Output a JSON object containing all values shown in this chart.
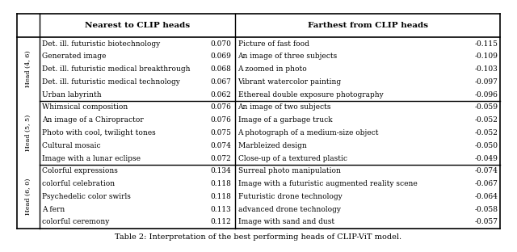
{
  "title": "Table 2: Interpretation of the best performing heads of CLIP-ViT model.",
  "col_header_left": "Nearest to CLIP heads",
  "col_header_right": "Farthest from CLIP heads",
  "sections": [
    {
      "head_label": "Head (4, 6)",
      "nearest": [
        [
          "Det. ill. futuristic biotechnology",
          "0.070"
        ],
        [
          "Generated image",
          "0.069"
        ],
        [
          "Det. ill. futuristic medical breakthrough",
          "0.068"
        ],
        [
          "Det. ill. futuristic medical technology",
          "0.067"
        ],
        [
          "Urban labyrinth",
          "0.062"
        ]
      ],
      "farthest": [
        [
          "Picture of fast food",
          "-0.115"
        ],
        [
          "An image of three subjects",
          "-0.109"
        ],
        [
          "A zoomed in photo",
          "-0.103"
        ],
        [
          "Vibrant watercolor painting",
          "-0.097"
        ],
        [
          "Ethereal double exposure photography",
          "-0.096"
        ]
      ]
    },
    {
      "head_label": "Head (5, 5)",
      "nearest": [
        [
          "Whimsical composition",
          "0.076"
        ],
        [
          "An image of a Chiropractor",
          "0.076"
        ],
        [
          "Photo with cool, twilight tones",
          "0.075"
        ],
        [
          "Cultural mosaic",
          "0.074"
        ],
        [
          "Image with a lunar eclipse",
          "0.072"
        ]
      ],
      "farthest": [
        [
          "An image of two subjects",
          "-0.059"
        ],
        [
          "Image of a garbage truck",
          "-0.052"
        ],
        [
          "A photograph of a medium-size object",
          "-0.052"
        ],
        [
          "Marbleized design",
          "-0.050"
        ],
        [
          "Close-up of a textured plastic",
          "-0.049"
        ]
      ]
    },
    {
      "head_label": "Head (6, 0)",
      "nearest": [
        [
          "Colorful expressions",
          "0.134"
        ],
        [
          "colorful celebration",
          "0.118"
        ],
        [
          "Psychedelic color swirls",
          "0.118"
        ],
        [
          "A fern",
          "0.113"
        ],
        [
          "colorful ceremony",
          "0.112"
        ]
      ],
      "farthest": [
        [
          "Surreal photo manipulation",
          "-0.074"
        ],
        [
          "Image with a futuristic augmented reality scene",
          "-0.067"
        ],
        [
          "Futuristic drone technology",
          "-0.064"
        ],
        [
          "advanced drone technology",
          "-0.058"
        ],
        [
          "Image with sand and dust",
          "-0.057"
        ]
      ]
    }
  ],
  "fig_width": 6.4,
  "fig_height": 3.12,
  "dpi": 100
}
